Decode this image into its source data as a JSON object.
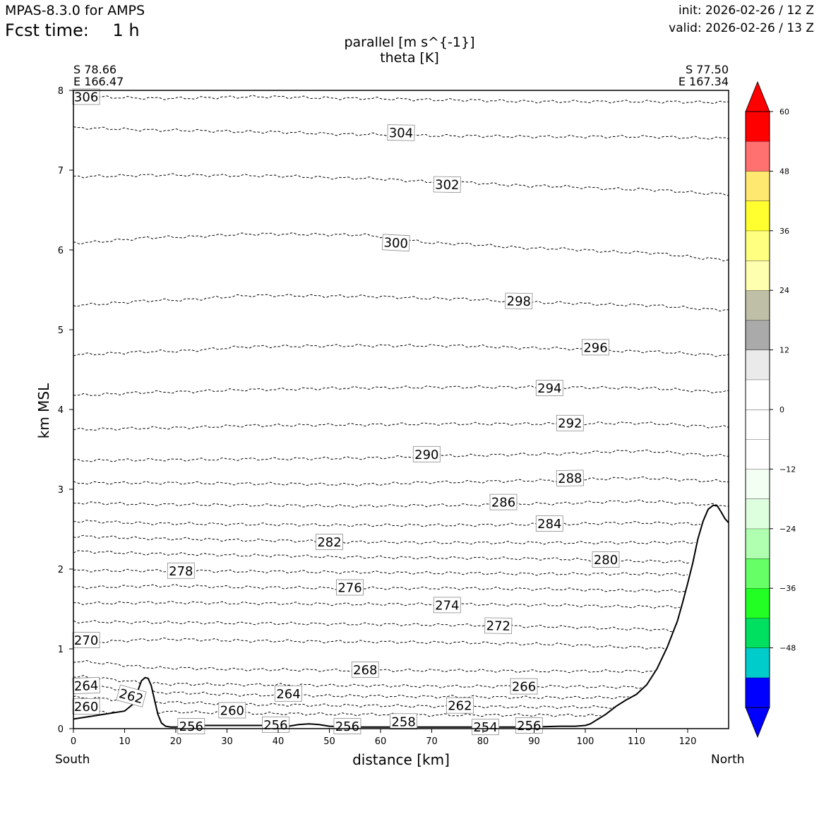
{
  "header": {
    "model": "MPAS-8.3.0 for AMPS",
    "fcst_label": "Fcst time:",
    "fcst_value": "1 h",
    "init": "init: 2026-02-26 / 12 Z",
    "valid": "valid: 2026-02-26 / 13 Z"
  },
  "plot": {
    "title_line1": "parallel [m s^{-1}]",
    "title_line2": "theta [K]",
    "left_end_lat": "S 78.66",
    "left_end_lon": "E 166.47",
    "right_end_lat": "S 77.50",
    "right_end_lon": "E 167.34",
    "south_label": "South",
    "north_label": "North"
  },
  "chart_data": {
    "type": "line",
    "title": "parallel [m s^{-1}] / theta [K]",
    "xlabel": "distance [km]",
    "ylabel": "km MSL",
    "xlim": [
      0,
      128
    ],
    "ylim": [
      0,
      8
    ],
    "x_ticks": [
      0,
      10,
      20,
      30,
      40,
      50,
      60,
      70,
      80,
      90,
      100,
      110,
      120
    ],
    "y_ticks": [
      0,
      1,
      2,
      3,
      4,
      5,
      6,
      7,
      8
    ],
    "terrain": {
      "x": [
        0,
        5,
        10,
        11.5,
        12.5,
        13.3,
        14,
        14.6,
        15.2,
        15.8,
        16.5,
        17.2,
        18,
        19,
        20,
        22,
        25,
        30,
        35,
        40,
        42,
        44,
        46,
        48,
        50,
        55,
        60,
        65,
        70,
        75,
        80,
        85,
        90,
        95,
        98,
        100,
        101,
        102,
        104,
        106,
        108,
        110,
        112,
        114,
        116,
        118,
        119,
        120,
        121,
        122,
        123,
        124,
        125,
        125.8,
        126.5,
        127.3,
        128
      ],
      "y": [
        0.12,
        0.17,
        0.22,
        0.3,
        0.46,
        0.6,
        0.64,
        0.63,
        0.54,
        0.37,
        0.18,
        0.07,
        0.03,
        0.02,
        0.02,
        0.03,
        0.04,
        0.04,
        0.04,
        0.04,
        0.03,
        0.05,
        0.06,
        0.05,
        0.03,
        0.02,
        0.02,
        0.02,
        0.02,
        0.02,
        0.02,
        0.02,
        0.02,
        0.03,
        0.03,
        0.04,
        0.06,
        0.1,
        0.18,
        0.28,
        0.36,
        0.43,
        0.55,
        0.75,
        1.02,
        1.35,
        1.58,
        1.82,
        2.08,
        2.38,
        2.6,
        2.75,
        2.8,
        2.79,
        2.72,
        2.63,
        2.58
      ]
    },
    "isentropes": [
      {
        "theta": 306,
        "y": [
          7.92,
          7.9,
          7.92,
          7.9,
          7.88,
          7.86,
          7.86,
          7.85
        ],
        "label_x": 2.5
      },
      {
        "theta": 304,
        "y": [
          7.53,
          7.5,
          7.48,
          7.45,
          7.43,
          7.42,
          7.42,
          7.4
        ],
        "label_x": 64
      },
      {
        "theta": 302,
        "y": [
          6.92,
          6.94,
          6.93,
          6.9,
          6.85,
          6.8,
          6.76,
          6.7
        ],
        "label_x": 73
      },
      {
        "theta": 300,
        "y": [
          6.09,
          6.16,
          6.2,
          6.19,
          6.08,
          6.02,
          5.97,
          5.88
        ],
        "label_x": 63
      },
      {
        "theta": 298,
        "y": [
          5.31,
          5.37,
          5.43,
          5.42,
          5.39,
          5.34,
          5.31,
          5.25
        ],
        "label_x": 87
      },
      {
        "theta": 296,
        "y": [
          4.69,
          4.73,
          4.79,
          4.8,
          4.8,
          4.77,
          4.73,
          4.68
        ],
        "label_x": 102
      },
      {
        "theta": 294,
        "y": [
          4.18,
          4.22,
          4.25,
          4.27,
          4.28,
          4.28,
          4.27,
          4.22
        ],
        "label_x": 93
      },
      {
        "theta": 292,
        "y": [
          3.75,
          3.77,
          3.8,
          3.81,
          3.82,
          3.82,
          3.83,
          3.78
        ],
        "label_x": 97
      },
      {
        "theta": 290,
        "y": [
          3.36,
          3.37,
          3.38,
          3.39,
          3.42,
          3.44,
          3.48,
          3.42
        ],
        "label_x": 69
      },
      {
        "theta": 288,
        "y": [
          3.08,
          3.08,
          3.07,
          3.06,
          3.09,
          3.11,
          3.14,
          3.1
        ],
        "label_x": 97
      },
      {
        "theta": 286,
        "y": [
          2.83,
          2.81,
          2.8,
          2.79,
          2.8,
          2.82,
          2.85,
          2.8
        ],
        "label_x": 84
      },
      {
        "theta": 284,
        "y": [
          2.6,
          2.57,
          2.56,
          2.55,
          2.55,
          2.56,
          2.58,
          2.56
        ],
        "label_x": 93
      },
      {
        "theta": 282,
        "y": [
          2.41,
          2.38,
          2.36,
          2.34,
          2.33,
          2.33,
          2.33,
          2.34
        ],
        "label_x": 50
      },
      {
        "theta": 280,
        "y": [
          2.22,
          2.19,
          2.17,
          2.15,
          2.14,
          2.13,
          2.1,
          2.08
        ],
        "label_x": 104
      },
      {
        "theta": 278,
        "y": [
          1.98,
          1.98,
          1.97,
          1.96,
          1.95,
          1.94,
          1.94,
          1.93
        ],
        "label_x": 21
      },
      {
        "theta": 276,
        "y": [
          1.77,
          1.79,
          1.77,
          1.76,
          1.76,
          1.75,
          1.73,
          1.72
        ],
        "label_x": 54
      },
      {
        "theta": 274,
        "y": [
          1.57,
          1.58,
          1.57,
          1.56,
          1.56,
          1.55,
          1.53,
          1.52
        ],
        "label_x": 73
      },
      {
        "theta": 272,
        "y": [
          1.34,
          1.33,
          1.32,
          1.31,
          1.3,
          1.28,
          1.25,
          1.18
        ],
        "label_x": 83
      },
      {
        "theta": 270,
        "y": [
          1.08,
          1.12,
          1.1,
          1.09,
          1.08,
          1.06,
          1.02,
          0.92
        ],
        "label_x": 2.5
      },
      {
        "theta": 268,
        "y": [
          0.84,
          0.76,
          0.74,
          0.73,
          0.73,
          0.72,
          0.72,
          0.7
        ],
        "label_x": 57
      },
      {
        "theta": 266,
        "y": [
          0.65,
          0.56,
          0.55,
          0.54,
          0.53,
          0.53,
          0.52,
          0.52
        ],
        "label_x": 88
      },
      {
        "theta": 264,
        "y": [
          0.54,
          0.45,
          0.42,
          0.41,
          0.4,
          0.39,
          0.39,
          0.4
        ],
        "label_x": 2.5
      },
      {
        "theta": 262,
        "y": [
          0.39,
          0.33,
          0.3,
          0.29,
          0.28,
          0.27,
          0.27,
          0.29
        ],
        "label_x": 11
      },
      {
        "theta": 260,
        "y": [
          0.21,
          0.21,
          0.19,
          0.18,
          0.17,
          0.17,
          0.16,
          0.2
        ],
        "label_x": 2.5
      }
    ],
    "contour_labels": [
      {
        "text": "306",
        "x": 2.5,
        "y": 7.92,
        "rot": 0
      },
      {
        "text": "304",
        "x": 64,
        "y": 7.47,
        "rot": 1
      },
      {
        "text": "302",
        "x": 73,
        "y": 6.82,
        "rot": 1
      },
      {
        "text": "300",
        "x": 63,
        "y": 6.09,
        "rot": 3
      },
      {
        "text": "298",
        "x": 87,
        "y": 5.36,
        "rot": 1
      },
      {
        "text": "296",
        "x": 102,
        "y": 4.78,
        "rot": 0
      },
      {
        "text": "294",
        "x": 93,
        "y": 4.27,
        "rot": 0
      },
      {
        "text": "292",
        "x": 97,
        "y": 3.83,
        "rot": 0
      },
      {
        "text": "290",
        "x": 69,
        "y": 3.44,
        "rot": 0
      },
      {
        "text": "288",
        "x": 97,
        "y": 3.14,
        "rot": -1
      },
      {
        "text": "286",
        "x": 84,
        "y": 2.84,
        "rot": 0
      },
      {
        "text": "284",
        "x": 93,
        "y": 2.57,
        "rot": 0
      },
      {
        "text": "282",
        "x": 50,
        "y": 2.34,
        "rot": 0
      },
      {
        "text": "280",
        "x": 104,
        "y": 2.12,
        "rot": 0
      },
      {
        "text": "278",
        "x": 21,
        "y": 1.98,
        "rot": 0
      },
      {
        "text": "276",
        "x": 54,
        "y": 1.77,
        "rot": 0
      },
      {
        "text": "274",
        "x": 73,
        "y": 1.55,
        "rot": 0
      },
      {
        "text": "272",
        "x": 83,
        "y": 1.29,
        "rot": 1
      },
      {
        "text": "270",
        "x": 2.5,
        "y": 1.11,
        "rot": 0
      },
      {
        "text": "268",
        "x": 57,
        "y": 0.74,
        "rot": 0
      },
      {
        "text": "266",
        "x": 88,
        "y": 0.53,
        "rot": 0
      },
      {
        "text": "264",
        "x": 2.5,
        "y": 0.54,
        "rot": -2
      },
      {
        "text": "262",
        "x": 11.3,
        "y": 0.41,
        "rot": 15
      },
      {
        "text": "260",
        "x": 2.5,
        "y": 0.28,
        "rot": 0
      },
      {
        "text": "264",
        "x": 42,
        "y": 0.44,
        "rot": 0
      },
      {
        "text": "262",
        "x": 75.5,
        "y": 0.29,
        "rot": 0
      },
      {
        "text": "260",
        "x": 31,
        "y": 0.23,
        "rot": 0
      },
      {
        "text": "258",
        "x": 64.5,
        "y": 0.09,
        "rot": 0
      },
      {
        "text": "256",
        "x": 23,
        "y": 0.03,
        "rot": 0
      },
      {
        "text": "256",
        "x": 39.5,
        "y": 0.05,
        "rot": 0
      },
      {
        "text": "256",
        "x": 53.5,
        "y": 0.03,
        "rot": 0
      },
      {
        "text": "254",
        "x": 80.5,
        "y": 0.02,
        "rot": 0
      },
      {
        "text": "256",
        "x": 89,
        "y": 0.04,
        "rot": 0
      }
    ],
    "colorbar": {
      "min": -60,
      "max": 60,
      "step": 6,
      "ticks": [
        60,
        48,
        36,
        24,
        12,
        0,
        -12,
        -24,
        -36,
        -48
      ],
      "tick_labels": [
        "60",
        "48",
        "36",
        "24",
        "12",
        "0",
        "−12",
        "−24",
        "−36",
        "−48"
      ],
      "over_color": "#ff0000",
      "under_color": "#0000ff",
      "colors": [
        "#0000ff",
        "#00cccc",
        "#00e060",
        "#22ff22",
        "#66ff66",
        "#b0ffb0",
        "#ddffdd",
        "#f2fff2",
        "#ffffff",
        "#ffffff",
        "#ffffff",
        "#eaeaea",
        "#aaaaaa",
        "#bfbfa8",
        "#ffffb0",
        "#ffff80",
        "#ffff30",
        "#ffe870",
        "#ff7070",
        "#ff0000"
      ]
    }
  }
}
